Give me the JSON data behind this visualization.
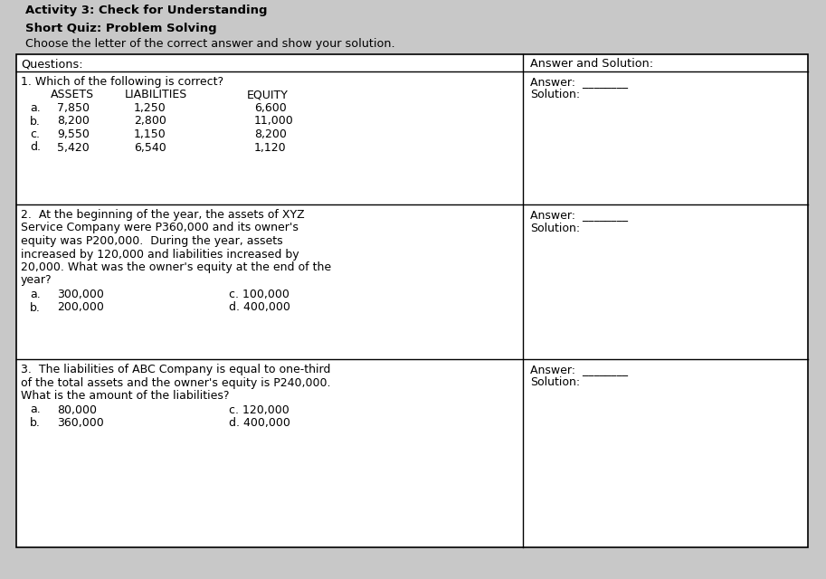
{
  "title1": "Activity 3: Check for Understanding",
  "title2": "Short Quiz: Problem Solving",
  "title3": "Choose the letter of the correct answer and show your solution.",
  "col1_header": "Questions:",
  "col2_header": "Answer and Solution:",
  "q1_header": "1. Which of the following is correct?",
  "q1_subheader_cols": [
    "ASSETS",
    "LIABILITIES",
    "EQUITY"
  ],
  "q1_rows": [
    [
      "a.",
      "7,850",
      "1,250",
      "6,600"
    ],
    [
      "b.",
      "8,200",
      "2,800",
      "11,000"
    ],
    [
      "c.",
      "9,550",
      "1,150",
      "8,200"
    ],
    [
      "d.",
      "5,420",
      "6,540",
      "1,120"
    ]
  ],
  "q2_lines": [
    "2.  At the beginning of the year, the assets of XYZ",
    "Service Company were P360,000 and its owner's",
    "equity was P200,000.  During the year, assets",
    "increased by 120,000 and liabilities increased by",
    "20,000. What was the owner's equity at the end of the",
    "year?"
  ],
  "q2_choices": [
    [
      "a.",
      "300,000",
      "c. 100,000"
    ],
    [
      "b.",
      "200,000",
      "d. 400,000"
    ]
  ],
  "q3_lines": [
    "3.  The liabilities of ABC Company is equal to one-third",
    "of the total assets and the owner's equity is P240,000.",
    "What is the amount of the liabilities?"
  ],
  "q3_choices": [
    [
      "a.",
      "80,000",
      "c. 120,000"
    ],
    [
      "b.",
      "360,000",
      "d. 400,000"
    ]
  ],
  "bg_color": "#c8c8c8",
  "table_bg": "#ffffff"
}
